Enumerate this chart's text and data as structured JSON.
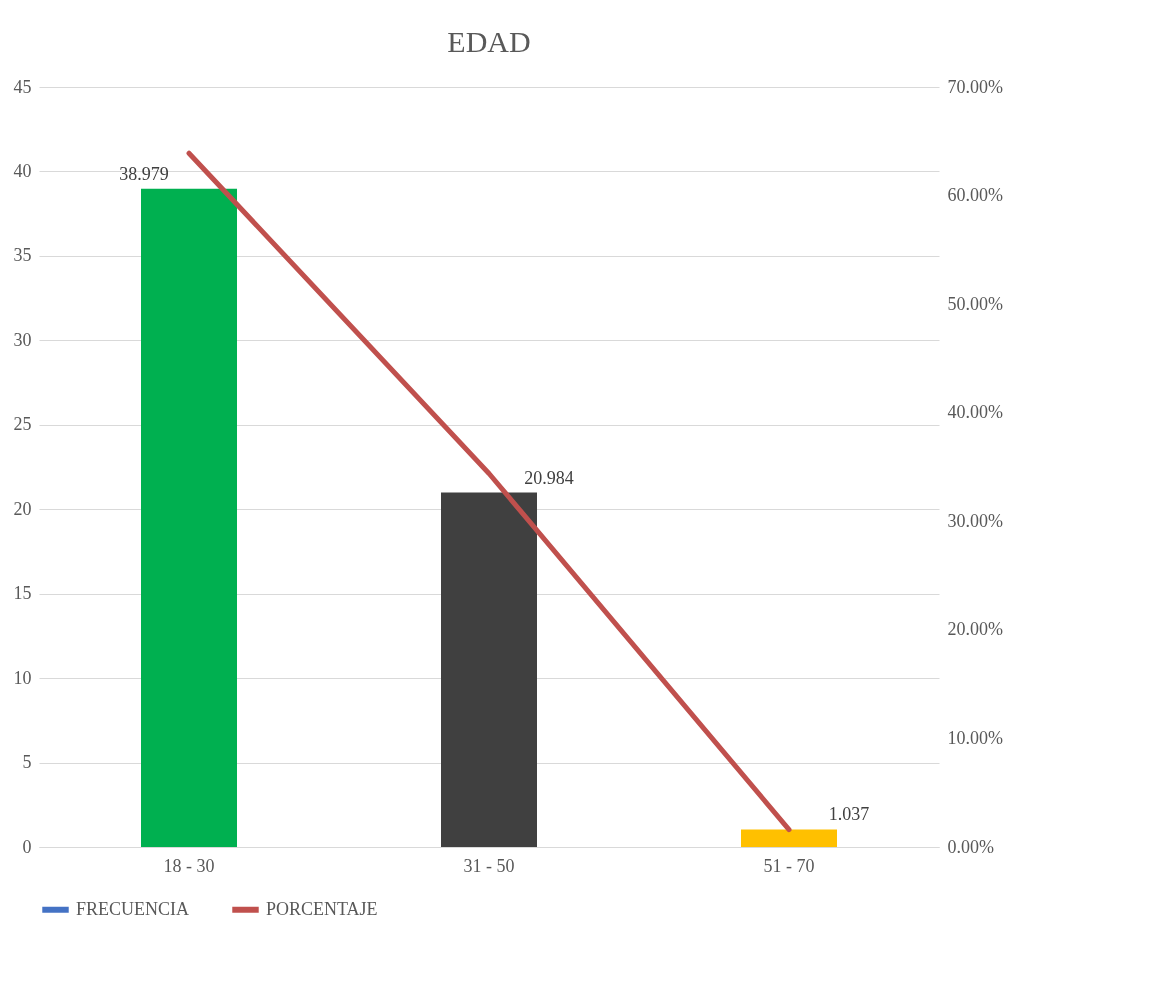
{
  "chart_data": {
    "type": "bar",
    "title": "EDAD",
    "categories": [
      "18 - 30",
      "31 - 50",
      "51 - 70"
    ],
    "series": [
      {
        "name": "FRECUENCIA",
        "color": "#4472c4",
        "colors": [
          "#00b050",
          "#404040",
          "#ffc000"
        ],
        "values": [
          38.979,
          20.984,
          1.037
        ],
        "value_labels": [
          "38.979",
          "20.984",
          "1.037"
        ]
      },
      {
        "name": "PORCENTAJE",
        "type": "line",
        "axis": "y2",
        "color": "#c0504d",
        "values": [
          63.9,
          34.4,
          1.6
        ]
      }
    ],
    "ylim": [
      0,
      45
    ],
    "yticks": [
      0,
      5,
      10,
      15,
      20,
      25,
      30,
      35,
      40,
      45
    ],
    "y2lim": [
      0,
      70
    ],
    "y2ticks": [
      {
        "value": 0,
        "label": "0.00%"
      },
      {
        "value": 10,
        "label": "10.00%"
      },
      {
        "value": 20,
        "label": "20.00%"
      },
      {
        "value": 30,
        "label": "30.00%"
      },
      {
        "value": 40,
        "label": "40.00%"
      },
      {
        "value": 50,
        "label": "50.00%"
      },
      {
        "value": 60,
        "label": "60.00%"
      },
      {
        "value": 70,
        "label": "70.00%"
      }
    ],
    "grid": "y",
    "legend": "bottom",
    "marker": "none",
    "line_style": "solid"
  }
}
